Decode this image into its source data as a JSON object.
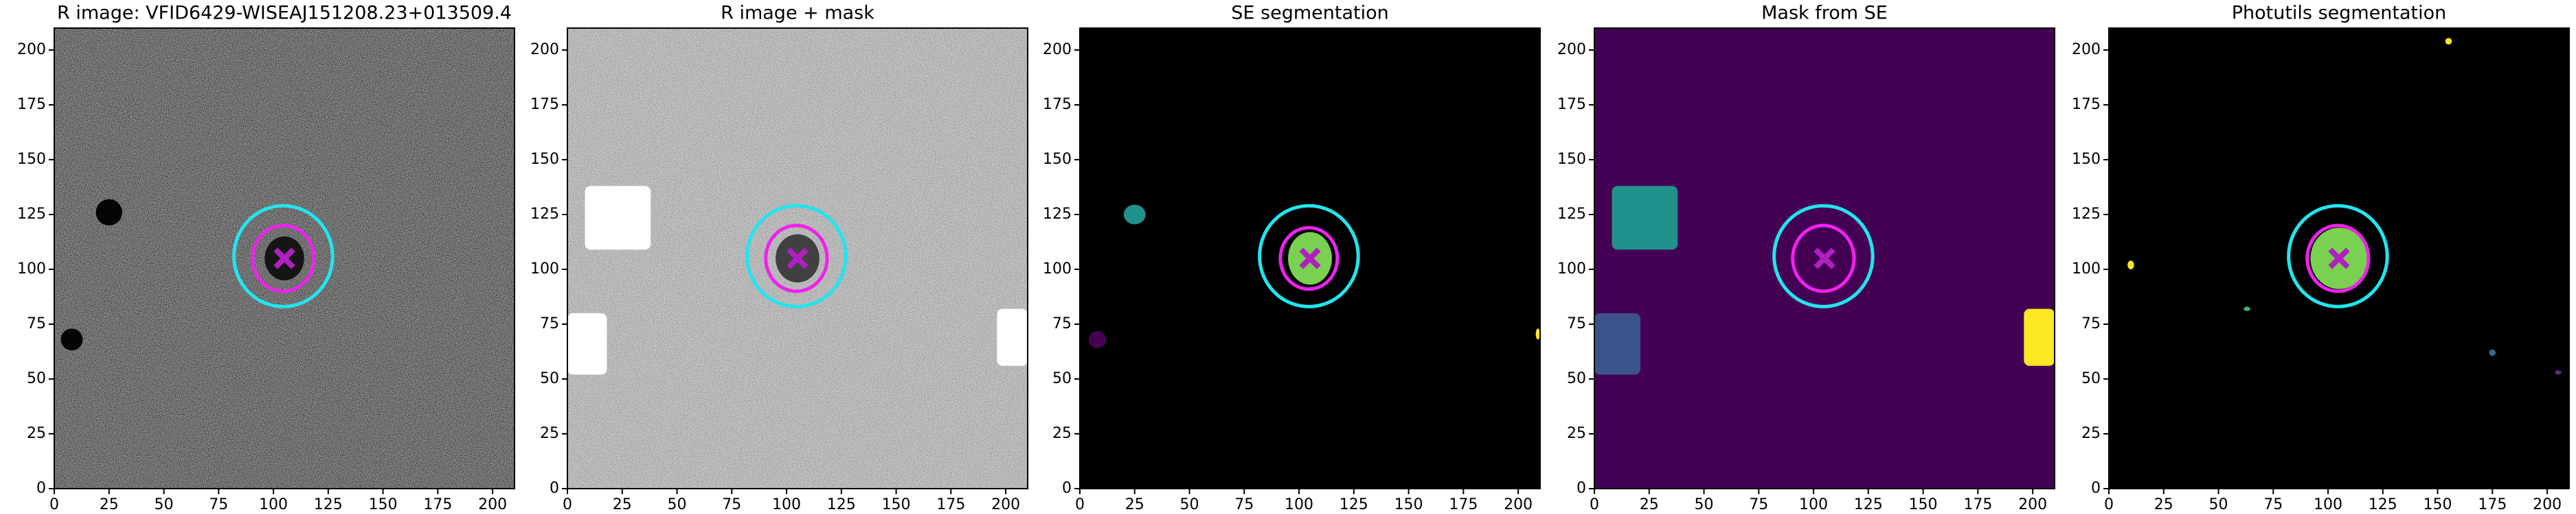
{
  "chart_data": [
    {
      "type": "image",
      "title": "R image: VFID6429-WISEAJ151208.23+013509.4",
      "xlim": [
        0,
        210
      ],
      "ylim": [
        0,
        210
      ],
      "xticks": [
        0,
        25,
        50,
        75,
        100,
        125,
        150,
        175,
        200
      ],
      "yticks": [
        0,
        25,
        50,
        75,
        100,
        125,
        150,
        175,
        200
      ],
      "background": "#505050",
      "texture": "dark",
      "regions": [
        {
          "shape": "ellipse",
          "cx": 25,
          "cy": 126,
          "rx": 6,
          "ry": 6,
          "color": "#050505"
        },
        {
          "shape": "ellipse",
          "cx": 8,
          "cy": 68,
          "rx": 5,
          "ry": 5,
          "color": "#050505"
        },
        {
          "shape": "ellipse",
          "cx": 105,
          "cy": 105,
          "rx": 9,
          "ry": 10,
          "color": "#151515"
        }
      ],
      "ellipses": [
        {
          "cx": 104.5,
          "cy": 106,
          "rx": 22.5,
          "ry": 23,
          "color": "#22e5ee"
        },
        {
          "cx": 104.5,
          "cy": 105,
          "rx": 14,
          "ry": 15,
          "color": "#ee22ee"
        }
      ],
      "marker": {
        "x": 105,
        "y": 105,
        "color": "#b020c0"
      }
    },
    {
      "type": "image",
      "title": "R image + mask",
      "xlim": [
        0,
        210
      ],
      "ylim": [
        0,
        210
      ],
      "xticks": [
        0,
        25,
        50,
        75,
        100,
        125,
        150,
        175,
        200
      ],
      "yticks": [
        0,
        25,
        50,
        75,
        100,
        125,
        150,
        175,
        200
      ],
      "background": "#d4d4d4",
      "texture": "light",
      "regions": [
        {
          "shape": "ellipse",
          "cx": 105,
          "cy": 105,
          "rx": 10,
          "ry": 11,
          "color": "#404040"
        },
        {
          "shape": "rect",
          "x0": 8,
          "x1": 38,
          "y0": 109,
          "y1": 138,
          "color": "#ffffff"
        },
        {
          "shape": "rect",
          "x0": 0,
          "x1": 18,
          "y0": 52,
          "y1": 80,
          "color": "#ffffff"
        },
        {
          "shape": "rect",
          "x0": 196,
          "x1": 210,
          "y0": 56,
          "y1": 82,
          "color": "#ffffff"
        }
      ],
      "ellipses": [
        {
          "cx": 104.5,
          "cy": 106,
          "rx": 22.5,
          "ry": 23,
          "color": "#22e5ee"
        },
        {
          "cx": 104.5,
          "cy": 105,
          "rx": 14,
          "ry": 15,
          "color": "#ee22ee"
        }
      ],
      "marker": {
        "x": 105,
        "y": 105,
        "color": "#b020c0"
      }
    },
    {
      "type": "image",
      "title": "SE segmentation",
      "xlim": [
        0,
        210
      ],
      "ylim": [
        0,
        210
      ],
      "xticks": [
        0,
        25,
        50,
        75,
        100,
        125,
        150,
        175,
        200
      ],
      "yticks": [
        0,
        25,
        50,
        75,
        100,
        125,
        150,
        175,
        200
      ],
      "background": "#000000",
      "regions": [
        {
          "shape": "ellipse",
          "cx": 25,
          "cy": 125,
          "rx": 5,
          "ry": 4.5,
          "color": "#21918c"
        },
        {
          "shape": "ellipse",
          "cx": 8,
          "cy": 68,
          "rx": 4,
          "ry": 4,
          "color": "#440154"
        },
        {
          "shape": "rect",
          "x0": 208,
          "x1": 210,
          "y0": 68,
          "y1": 73,
          "color": "#fde725"
        },
        {
          "shape": "ellipse",
          "cx": 105,
          "cy": 105,
          "rx": 10,
          "ry": 12,
          "color": "#7ad151"
        }
      ],
      "ellipses": [
        {
          "cx": 104.5,
          "cy": 106,
          "rx": 22.5,
          "ry": 23,
          "color": "#22e5ee"
        },
        {
          "cx": 104.5,
          "cy": 105,
          "rx": 13,
          "ry": 14,
          "color": "#ee22ee"
        }
      ],
      "marker": {
        "x": 105,
        "y": 105,
        "color": "#b020c0"
      }
    },
    {
      "type": "image",
      "title": "Mask from SE",
      "xlim": [
        0,
        210
      ],
      "ylim": [
        0,
        210
      ],
      "xticks": [
        0,
        25,
        50,
        75,
        100,
        125,
        150,
        175,
        200
      ],
      "yticks": [
        0,
        25,
        50,
        75,
        100,
        125,
        150,
        175,
        200
      ],
      "background": "#440154",
      "regions": [
        {
          "shape": "rect",
          "x0": 8,
          "x1": 38,
          "y0": 109,
          "y1": 138,
          "color": "#21918c"
        },
        {
          "shape": "rect",
          "x0": 0,
          "x1": 21,
          "y0": 52,
          "y1": 80,
          "color": "#3b528b"
        },
        {
          "shape": "rect",
          "x0": 196,
          "x1": 210,
          "y0": 56,
          "y1": 82,
          "color": "#fde725"
        }
      ],
      "ellipses": [
        {
          "cx": 104.5,
          "cy": 106,
          "rx": 22.5,
          "ry": 23,
          "color": "#22e5ee"
        },
        {
          "cx": 104.5,
          "cy": 105,
          "rx": 14,
          "ry": 15,
          "color": "#ee22ee"
        }
      ],
      "marker": {
        "x": 105,
        "y": 105,
        "color": "#b020c0"
      }
    },
    {
      "type": "image",
      "title": "Photutils segmentation",
      "xlim": [
        0,
        210
      ],
      "ylim": [
        0,
        210
      ],
      "xticks": [
        0,
        25,
        50,
        75,
        100,
        125,
        150,
        175,
        200
      ],
      "yticks": [
        0,
        25,
        50,
        75,
        100,
        125,
        150,
        175,
        200
      ],
      "background": "#000000",
      "regions": [
        {
          "shape": "ellipse",
          "cx": 105,
          "cy": 105,
          "rx": 13,
          "ry": 14,
          "color": "#7ad151"
        },
        {
          "shape": "ellipse",
          "cx": 155,
          "cy": 204,
          "rx": 1.5,
          "ry": 1.5,
          "color": "#fde725"
        },
        {
          "shape": "ellipse",
          "cx": 10,
          "cy": 102,
          "rx": 1.5,
          "ry": 2,
          "color": "#fde725"
        },
        {
          "shape": "ellipse",
          "cx": 63,
          "cy": 82,
          "rx": 1.5,
          "ry": 1,
          "color": "#35b779"
        },
        {
          "shape": "ellipse",
          "cx": 175,
          "cy": 62,
          "rx": 1.5,
          "ry": 1.5,
          "color": "#31688e"
        },
        {
          "shape": "ellipse",
          "cx": 205,
          "cy": 53,
          "rx": 1.5,
          "ry": 1,
          "color": "#5b2a86"
        }
      ],
      "ellipses": [
        {
          "cx": 104.5,
          "cy": 106,
          "rx": 22.5,
          "ry": 23,
          "color": "#22e5ee"
        },
        {
          "cx": 104.5,
          "cy": 105,
          "rx": 14,
          "ry": 15,
          "color": "#ee22ee"
        }
      ],
      "marker": {
        "x": 105,
        "y": 105,
        "color": "#b020c0"
      }
    }
  ]
}
